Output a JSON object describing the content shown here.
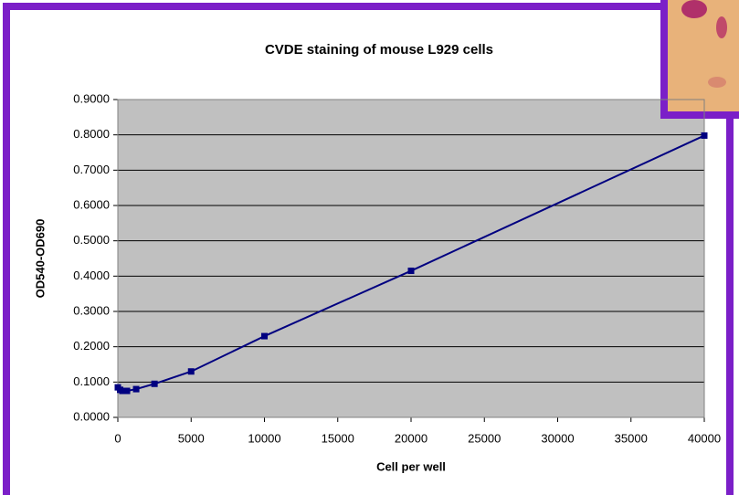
{
  "chart_data": {
    "type": "line",
    "title": "CVDE staining of mouse L929 cells",
    "xlabel": "Cell per well",
    "ylabel": "OD540-OD690",
    "x": [
      0,
      156,
      312,
      625,
      1250,
      2500,
      5000,
      10000,
      20000,
      40000
    ],
    "series": [
      {
        "color": "#000080",
        "values": [
          0.085,
          0.078,
          0.075,
          0.075,
          0.08,
          0.095,
          0.13,
          0.23,
          0.415,
          0.798
        ]
      }
    ],
    "xlim": [
      0,
      40000
    ],
    "xticks": [
      0,
      5000,
      10000,
      15000,
      20000,
      25000,
      30000,
      35000,
      40000
    ],
    "ylim": [
      0,
      0.9
    ],
    "yticks": [
      {
        "value": 0,
        "label": "0.0000"
      },
      {
        "value": 0.1,
        "label": "0.1000"
      },
      {
        "value": 0.2,
        "label": "0.2000"
      },
      {
        "value": 0.3,
        "label": "0.3000"
      },
      {
        "value": 0.4,
        "label": "0.4000"
      },
      {
        "value": 0.5,
        "label": "0.5000"
      },
      {
        "value": 0.6,
        "label": "0.6000"
      },
      {
        "value": 0.7,
        "label": "0.7000"
      },
      {
        "value": 0.8,
        "label": "0.8000"
      },
      {
        "value": 0.9,
        "label": "0.9000"
      }
    ],
    "grid": true
  }
}
